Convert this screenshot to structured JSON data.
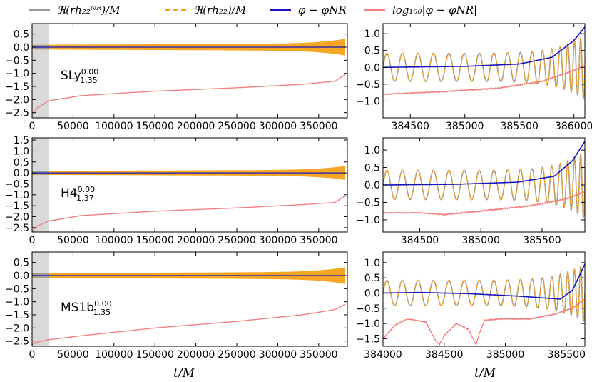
{
  "chart_data": {
    "type": "line",
    "legend": [
      {
        "label": "ℜ(rh₂₂ᴺᴿ)/M",
        "color": "#999999",
        "style": "solid"
      },
      {
        "label": "ℜ(rh₂₂)/M",
        "color": "#f5a623",
        "style": "dashed"
      },
      {
        "label": "φ − φNR",
        "color": "#1515c0",
        "style": "solid"
      },
      {
        "label": "log₁₀₀|φ − φNR|",
        "color": "#f28080",
        "style": "solid"
      }
    ],
    "xlabel": "t/M",
    "colors": {
      "nr": "#999999",
      "eob": "#f5a623",
      "dphi": "#1515c0",
      "logdphi": "#f28080",
      "shade": "#d9d9d9"
    },
    "rows": [
      {
        "eos": "SLy",
        "sup": "0.00",
        "sub": "1.35",
        "left": {
          "xlim": [
            0,
            385000
          ],
          "ylim": [
            -2.7,
            0.9
          ],
          "xticks": [
            "0",
            "50000",
            "100000",
            "150000",
            "200000",
            "250000",
            "300000",
            "350000"
          ],
          "yticks": [
            "0.5",
            "0.0",
            "-0.5",
            "-1.0",
            "-1.5",
            "-2.0",
            "-2.5"
          ],
          "shade": [
            0,
            20000
          ],
          "log_curve": {
            "x": [
              0,
              5000,
              20000,
              60000,
              150000,
              250000,
              330000,
              370000,
              382000
            ],
            "y": [
              -2.6,
              -2.35,
              -2.05,
              -1.85,
              -1.68,
              -1.55,
              -1.42,
              -1.3,
              -1.05
            ]
          }
        },
        "right": {
          "xlim": [
            384250,
            386100
          ],
          "ylim": [
            -1.5,
            1.3
          ],
          "xticks": [
            "384500",
            "385000",
            "385500",
            "386000"
          ],
          "yticks": [
            "1.0",
            "0.5",
            "0.0",
            "-0.5",
            "-1.0"
          ],
          "dphi": {
            "x": [
              384250,
              385000,
              385500,
              385800,
              386000,
              386100
            ],
            "y": [
              0.0,
              0.03,
              0.1,
              0.3,
              0.8,
              1.2
            ]
          },
          "log": {
            "x": [
              384250,
              384800,
              385300,
              385700,
              385950,
              386100
            ],
            "y": [
              -0.8,
              -0.72,
              -0.62,
              -0.42,
              -0.15,
              0.05
            ]
          }
        }
      },
      {
        "eos": "H4",
        "sup": "0.00",
        "sub": "1.37",
        "left": {
          "xlim": [
            0,
            385000
          ],
          "ylim": [
            -2.7,
            1.6
          ],
          "xticks": [
            "0",
            "50000",
            "100000",
            "150000",
            "200000",
            "250000",
            "300000",
            "350000"
          ],
          "yticks": [
            "1.5",
            "1.0",
            "0.5",
            "0.0",
            "-0.5",
            "-1.0",
            "-1.5",
            "-2.0",
            "-2.5"
          ],
          "shade": [
            0,
            20000
          ],
          "log_curve": {
            "x": [
              0,
              5000,
              20000,
              60000,
              150000,
              250000,
              330000,
              370000,
              382000
            ],
            "y": [
              -2.7,
              -2.45,
              -2.2,
              -1.95,
              -1.75,
              -1.6,
              -1.45,
              -1.35,
              -1.05
            ]
          }
        },
        "right": {
          "xlim": [
            384200,
            385850
          ],
          "ylim": [
            -1.35,
            1.35
          ],
          "xticks": [
            "384500",
            "385000",
            "385500"
          ],
          "yticks": [
            "1.0",
            "0.5",
            "0.0",
            "-0.5",
            "-1.0"
          ],
          "dphi": {
            "x": [
              384200,
              384800,
              385300,
              385600,
              385750,
              385850
            ],
            "y": [
              0.0,
              0.02,
              0.08,
              0.25,
              0.7,
              1.25
            ]
          },
          "log": {
            "x": [
              384200,
              384500,
              384700,
              385000,
              385400,
              385700,
              385850
            ],
            "y": [
              -0.8,
              -0.8,
              -0.85,
              -0.75,
              -0.6,
              -0.4,
              -0.2
            ]
          }
        }
      },
      {
        "eos": "MS1b",
        "sup": "0.00",
        "sub": "1.35",
        "left": {
          "xlim": [
            0,
            385000
          ],
          "ylim": [
            -2.7,
            0.9
          ],
          "xticks": [
            "0",
            "50000",
            "100000",
            "150000",
            "200000",
            "250000",
            "300000",
            "350000"
          ],
          "yticks": [
            "0.5",
            "0.0",
            "-0.5",
            "-1.0",
            "-1.5",
            "-2.0",
            "-2.5"
          ],
          "shade": [
            0,
            20000
          ],
          "log_curve": {
            "x": [
              0,
              5000,
              20000,
              60000,
              150000,
              250000,
              330000,
              370000,
              382000
            ],
            "y": [
              -2.65,
              -2.55,
              -2.45,
              -2.3,
              -2.0,
              -1.75,
              -1.5,
              -1.3,
              -1.1
            ]
          }
        },
        "right": {
          "xlim": [
            384000,
            385650
          ],
          "ylim": [
            -1.75,
            1.35
          ],
          "xticks": [
            "384000",
            "384500",
            "385000",
            "385500"
          ],
          "yticks": [
            "1.0",
            "0.5",
            "0.0",
            "-0.5",
            "-1.0",
            "-1.5"
          ],
          "dphi": {
            "x": [
              384000,
              384300,
              384700,
              385100,
              385450,
              385550,
              385650
            ],
            "y": [
              0.0,
              0.02,
              -0.02,
              -0.1,
              -0.2,
              0.1,
              0.95
            ]
          },
          "log": {
            "x": [
              384000,
              384100,
              384200,
              384350,
              384420,
              384460,
              384500,
              384600,
              384700,
              384760,
              384790,
              384830,
              384950,
              385200,
              385400,
              385550,
              385650
            ],
            "y": [
              -1.5,
              -1.05,
              -0.85,
              -0.95,
              -1.5,
              -1.7,
              -1.4,
              -1.0,
              -1.2,
              -1.7,
              -1.3,
              -0.9,
              -0.85,
              -0.85,
              -0.7,
              -0.5,
              -0.2
            ]
          }
        }
      }
    ]
  }
}
